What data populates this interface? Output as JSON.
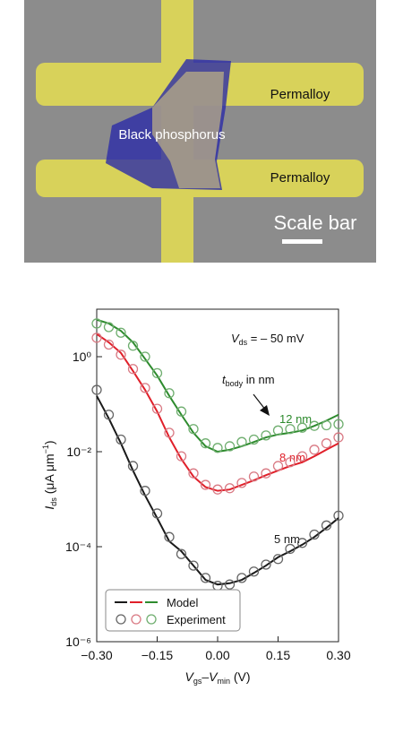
{
  "figure": {
    "labels": [
      "Permalloy",
      "Black phosphorus",
      "Permalloy",
      "Scale bar"
    ]
  },
  "chart_data": {
    "type": "line",
    "yscale": "log",
    "annotation_vds": [
      "V",
      "ds",
      " = – 50 mV"
    ],
    "annotation_tbody": [
      "t",
      "body",
      " in nm"
    ],
    "ylabel": [
      "I",
      "ds",
      " (μA μm",
      "−1",
      ")"
    ],
    "xlabel": [
      "V",
      "gs",
      "–V",
      "min",
      " (V)"
    ],
    "legend": [
      "Model",
      "Experiment"
    ],
    "legend_corner": "lower-left",
    "xlim": [
      -0.3,
      0.3
    ],
    "xticks": [
      {
        "value": -0.3,
        "label": "−0.30"
      },
      {
        "value": -0.15,
        "label": "−0.15"
      },
      {
        "value": 0,
        "label": "0.00"
      },
      {
        "value": 0.15,
        "label": "0.15"
      },
      {
        "value": 0.3,
        "label": "0.30"
      }
    ],
    "ylim": [
      1e-06,
      10
    ],
    "yticks": [
      {
        "value": 1e-06,
        "label": "10⁻⁶"
      },
      {
        "value": 0.0001,
        "label": "10⁻⁴"
      },
      {
        "value": 0.01,
        "label": "10⁻²"
      },
      {
        "value": 1,
        "label": "10⁰"
      }
    ],
    "x": [
      -0.3,
      -0.27,
      -0.24,
      -0.21,
      -0.18,
      -0.15,
      -0.12,
      -0.09,
      -0.06,
      -0.03,
      0,
      0.03,
      0.06,
      0.09,
      0.12,
      0.15,
      0.18,
      0.21,
      0.24,
      0.27,
      0.3
    ],
    "series": [
      {
        "name": "12 nm",
        "kind": "model",
        "color": "#2e8b2e",
        "values": [
          6,
          5,
          3.5,
          2,
          0.9,
          0.4,
          0.15,
          0.06,
          0.025,
          0.013,
          0.01,
          0.011,
          0.013,
          0.016,
          0.02,
          0.023,
          0.025,
          0.028,
          0.035,
          0.045,
          0.06
        ]
      },
      {
        "name": "8 nm",
        "kind": "model",
        "color": "#e0202a",
        "values": [
          3,
          2,
          1.2,
          0.5,
          0.2,
          0.07,
          0.02,
          0.007,
          0.003,
          0.0018,
          0.0015,
          0.0016,
          0.002,
          0.0025,
          0.0032,
          0.004,
          0.005,
          0.006,
          0.008,
          0.011,
          0.015
        ]
      },
      {
        "name": "5 nm",
        "kind": "model",
        "color": "#1a1a1a",
        "values": [
          0.15,
          0.05,
          0.015,
          0.004,
          0.0012,
          0.0004,
          0.00013,
          8e-05,
          4e-05,
          2e-05,
          1.6e-05,
          1.7e-05,
          2e-05,
          2.8e-05,
          4e-05,
          6e-05,
          8e-05,
          0.00011,
          0.00016,
          0.00025,
          0.0004
        ]
      },
      {
        "kind": "experiment",
        "color": "#6fae6f",
        "values": [
          5,
          4.2,
          3.2,
          1.7,
          1,
          0.45,
          0.17,
          0.07,
          0.03,
          0.015,
          0.012,
          0.013,
          0.016,
          0.018,
          0.022,
          0.028,
          0.03,
          0.032,
          0.035,
          0.036,
          0.038
        ]
      },
      {
        "kind": "experiment",
        "color": "#d97a84",
        "values": [
          2.5,
          1.8,
          1.1,
          0.55,
          0.22,
          0.08,
          0.025,
          0.008,
          0.0035,
          0.002,
          0.0016,
          0.0017,
          0.0022,
          0.003,
          0.0035,
          0.005,
          0.006,
          0.008,
          0.011,
          0.015,
          0.02
        ]
      },
      {
        "kind": "experiment",
        "color": "#666666",
        "values": [
          0.2,
          0.06,
          0.018,
          0.005,
          0.0015,
          0.0005,
          0.00016,
          7e-05,
          4e-05,
          2.2e-05,
          1.5e-05,
          1.6e-05,
          2.2e-05,
          3e-05,
          4.2e-05,
          5.5e-05,
          9e-05,
          0.00012,
          0.00018,
          0.00028,
          0.00045
        ]
      }
    ]
  }
}
